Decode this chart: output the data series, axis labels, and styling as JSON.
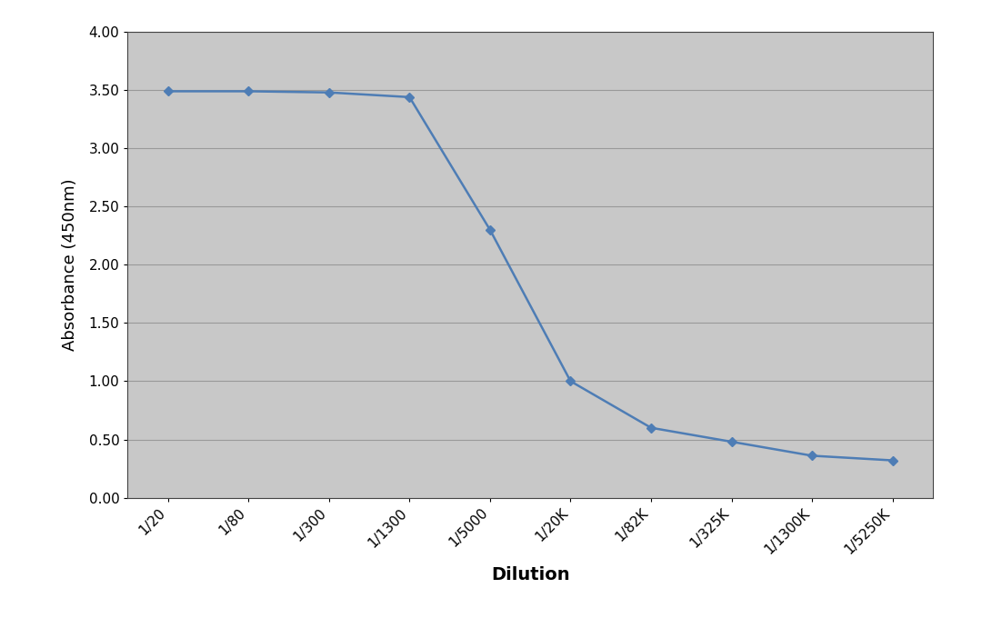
{
  "x_labels": [
    "1/20",
    "1/80",
    "1/300",
    "1/1300",
    "1/5000",
    "1/20K",
    "1/82K",
    "1/325K",
    "1/1300K",
    "1/5250K"
  ],
  "y_values": [
    3.49,
    3.49,
    3.48,
    3.44,
    2.3,
    1.0,
    0.6,
    0.48,
    0.36,
    0.32
  ],
  "xlabel": "Dilution",
  "ylabel": "Absorbance (450nm)",
  "ylim": [
    0.0,
    4.0
  ],
  "yticks": [
    0.0,
    0.5,
    1.0,
    1.5,
    2.0,
    2.5,
    3.0,
    3.5,
    4.0
  ],
  "ytick_labels": [
    "0.00",
    "0.50",
    "1.00",
    "1.50",
    "2.00",
    "2.50",
    "3.00",
    "3.50",
    "4.00"
  ],
  "xlabel_fontsize": 14,
  "ylabel_fontsize": 13,
  "tick_fontsize": 11,
  "line_color": "#4E7DB5",
  "marker": "D",
  "marker_size": 5,
  "background_color": "#C8C8C8",
  "outer_background": "#FFFFFF",
  "grid_color": "#999999",
  "grid_linewidth": 0.8,
  "spine_color": "#444444",
  "spine_linewidth": 0.8,
  "line_width": 1.8
}
